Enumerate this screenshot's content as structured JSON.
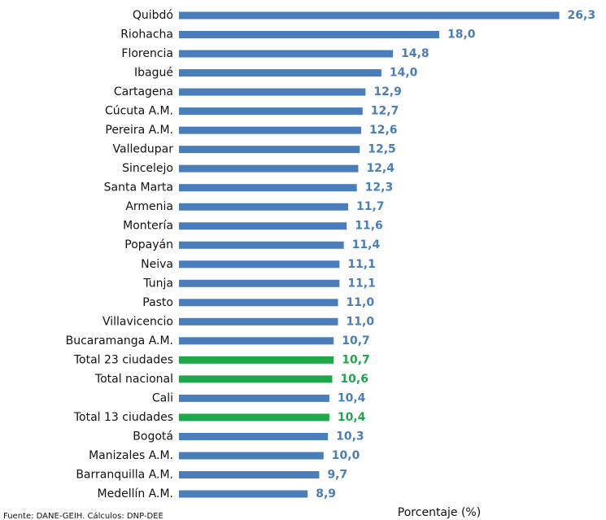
{
  "chart_data": {
    "type": "barh",
    "categories": [
      "Quibdó",
      "Riohacha",
      "Florencia",
      "Ibagué",
      "Cartagena",
      "Cúcuta A.M.",
      "Pereira A.M.",
      "Valledupar",
      "Sincelejo",
      "Santa Marta",
      "Armenia",
      "Montería",
      "Popayán",
      "Neiva",
      "Tunja",
      "Pasto",
      "Villavicencio",
      "Bucaramanga A.M.",
      "Total 23 ciudades",
      "Total nacional",
      "Cali",
      "Total 13 ciudades",
      "Bogotá",
      "Manizales A.M.",
      "Barranquilla A.M.",
      "Medellín A.M."
    ],
    "values": [
      26.3,
      18.0,
      14.8,
      14.0,
      12.9,
      12.7,
      12.6,
      12.5,
      12.4,
      12.3,
      11.7,
      11.6,
      11.4,
      11.1,
      11.1,
      11.0,
      11.0,
      10.7,
      10.7,
      10.6,
      10.4,
      10.4,
      10.3,
      10.0,
      9.7,
      8.9
    ],
    "value_labels": [
      "26,3",
      "18,0",
      "14,8",
      "14,0",
      "12,9",
      "12,7",
      "12,6",
      "12,5",
      "12,4",
      "12,3",
      "11,7",
      "11,6",
      "11,4",
      "11,1",
      "11,1",
      "11,0",
      "11,0",
      "10,7",
      "10,7",
      "10,6",
      "10,4",
      "10,4",
      "10,3",
      "10,0",
      "9,7",
      "8,9"
    ],
    "colors": [
      "#4a7ebb",
      "#4a7ebb",
      "#4a7ebb",
      "#4a7ebb",
      "#4a7ebb",
      "#4a7ebb",
      "#4a7ebb",
      "#4a7ebb",
      "#4a7ebb",
      "#4a7ebb",
      "#4a7ebb",
      "#4a7ebb",
      "#4a7ebb",
      "#4a7ebb",
      "#4a7ebb",
      "#4a7ebb",
      "#4a7ebb",
      "#4a7ebb",
      "#1fa84a",
      "#1fa84a",
      "#4a7ebb",
      "#1fa84a",
      "#4a7ebb",
      "#4a7ebb",
      "#4a7ebb",
      "#4a7ebb"
    ],
    "xlim": [
      0,
      27
    ],
    "xlabel": "Porcentaje (%)",
    "source": "Fuente: DANE-GEIH. Cálculos: DNP-DEE"
  }
}
